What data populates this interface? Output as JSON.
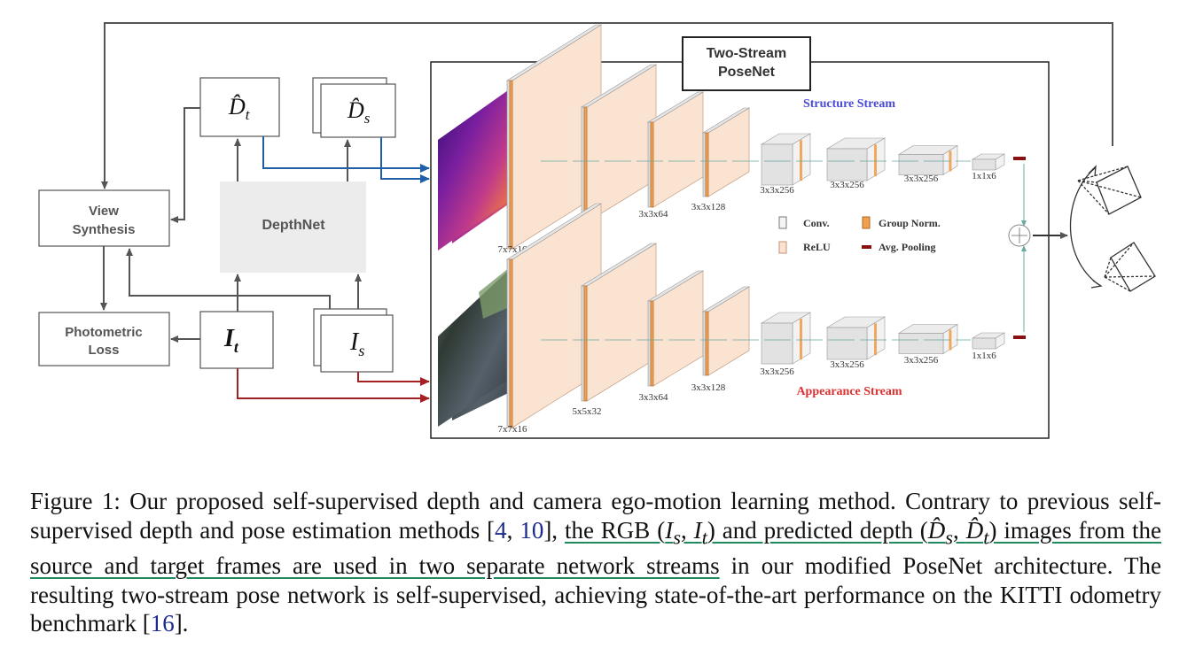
{
  "figure": {
    "posenet_title_line1": "Two-Stream",
    "posenet_title_line2": "PoseNet",
    "view_synthesis_line1": "View",
    "view_synthesis_line2": "Synthesis",
    "photometric_loss_line1": "Photometric",
    "photometric_loss_line2": "Loss",
    "depthnet_label": "DepthNet",
    "dt_hat_label": "D̂",
    "dt_hat_sub": "t",
    "ds_hat_label": "D̂",
    "ds_hat_sub": "s",
    "it_label": "I",
    "it_sub": "t",
    "is_label": "I",
    "is_sub": "s",
    "structure_stream_label": "Structure Stream",
    "appearance_stream_label": "Appearance Stream",
    "legend": {
      "conv": "Conv.",
      "group_norm": "Group Norm.",
      "relu": "ReLU",
      "avg_pooling": "Avg. Pooling"
    },
    "layer_labels": [
      "7x7x16",
      "5x5x32",
      "3x3x64",
      "3x3x128",
      "3x3x256",
      "3x3x256",
      "3x3x256",
      "1x1x6"
    ],
    "colors": {
      "structure_stream": "#4a4ad6",
      "appearance_stream": "#e03030",
      "blue_arrow": "#1f5fa8",
      "red_arrow": "#a52020",
      "gray_arrow": "#555555",
      "conv_face": "#fbe3d2",
      "group_norm": "#f0a050",
      "pool": "#8a1010"
    }
  },
  "caption": {
    "text1": "Figure 1: Our proposed self-supervised depth and camera ego-motion learning method. Contrary to previous self-supervised depth and pose estimation methods [",
    "cite1": "4",
    "comma": ", ",
    "cite2": "10",
    "text2": "], ",
    "hl1": "the RGB (",
    "hl_is": "I",
    "hl_is_sub": "s",
    "hl_sep": ", ",
    "hl_it": "I",
    "hl_it_sub": "t",
    "hl2": ") and predicted depth (",
    "hl_ds": "D̂",
    "hl_ds_sub": "s",
    "hl_sep2": ", ",
    "hl_dt": "D̂",
    "hl_dt_sub": "t",
    "hl3": ") images from the source and target frames are used in two separate network streams",
    "text3": " in our modified PoseNet architecture. The resulting two-stream pose network is self-supervised, achieving state-of-the-art performance on the KITTI odometry benchmark [",
    "cite3": "16",
    "text4": "]."
  }
}
